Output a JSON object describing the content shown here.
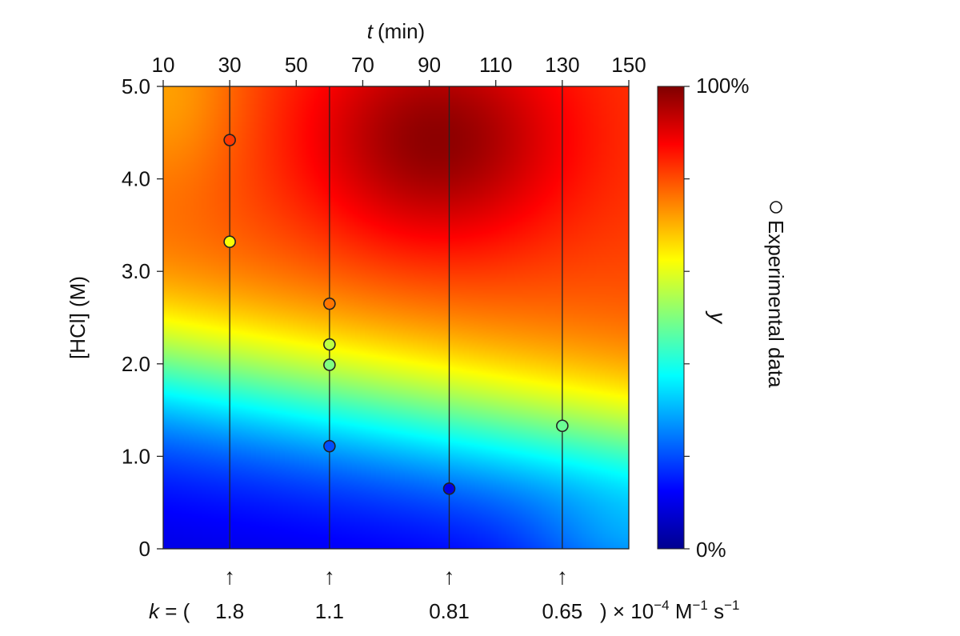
{
  "chart_data": {
    "type": "heatmap",
    "title": "",
    "x_axis": {
      "label_var": "t",
      "label_unit": "(min)",
      "position": "top",
      "range": [
        10,
        150
      ],
      "ticks": [
        10,
        30,
        50,
        70,
        90,
        110,
        130,
        150
      ]
    },
    "y_axis": {
      "label": "[HCl] (M)",
      "range": [
        0,
        5.0
      ],
      "ticks": [
        0,
        1.0,
        2.0,
        3.0,
        4.0,
        5.0
      ],
      "tick_labels": [
        "0",
        "1.0",
        "2.0",
        "3.0",
        "4.0",
        "5.0"
      ]
    },
    "colorbar": {
      "label": "y",
      "min_label": "0%",
      "max_label": "100%",
      "colormap": "jet",
      "range": [
        0,
        100
      ]
    },
    "heatmap_model": {
      "peak": {
        "t": 92,
        "hcl": 4.4,
        "value": 97
      },
      "note_colors": {
        "low": "#00008f",
        "high": "#7f0000"
      }
    },
    "vertical_lines": [
      {
        "t": 30,
        "k": "1.8"
      },
      {
        "t": 60,
        "k": "1.1"
      },
      {
        "t": 96,
        "k": "0.81"
      },
      {
        "t": 130,
        "k": "0.65"
      }
    ],
    "k_label": {
      "prefix": "k",
      "open": " = (",
      "units": ") × 10",
      "exp": "−4",
      "unit_tail_1": " M",
      "unit_exp_1": "−1",
      "unit_tail_2": " s",
      "unit_exp_2": "−1"
    },
    "experimental_points": [
      {
        "t": 30,
        "hcl": 4.42,
        "y": 82
      },
      {
        "t": 30,
        "hcl": 3.32,
        "y": 62
      },
      {
        "t": 60,
        "hcl": 2.65,
        "y": 76
      },
      {
        "t": 60,
        "hcl": 2.21,
        "y": 56
      },
      {
        "t": 60,
        "hcl": 1.99,
        "y": 50
      },
      {
        "t": 60,
        "hcl": 1.11,
        "y": 20
      },
      {
        "t": 96,
        "hcl": 0.65,
        "y": 10
      },
      {
        "t": 130,
        "hcl": 1.33,
        "y": 48
      }
    ],
    "legend": {
      "marker": "circle",
      "label": "Experimental data",
      "placement": "right"
    }
  }
}
